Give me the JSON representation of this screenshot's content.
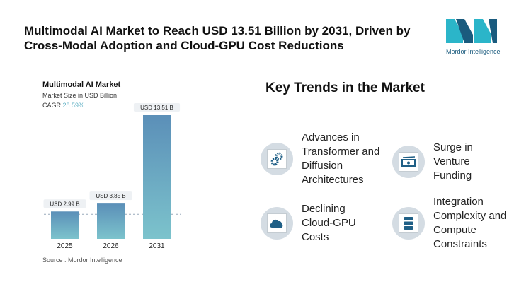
{
  "title": "Multimodal AI Market to Reach USD 13.51 Billion by 2031, Driven by Cross-Modal Adoption and Cloud-GPU Cost Reductions",
  "logo": {
    "text": "Mordor Intelligence"
  },
  "chart_data": {
    "type": "bar",
    "title": "Multimodal AI Market",
    "subtitle": "Market Size in USD Billion",
    "cagr_label": "CAGR",
    "cagr_value": "28.59%",
    "categories": [
      "2025",
      "2026",
      "2031"
    ],
    "values": [
      2.99,
      3.85,
      13.51
    ],
    "data_labels": [
      "USD 2.99 B",
      "USD 3.85 B",
      "USD 13.51 B"
    ],
    "ylim": [
      0,
      13.51
    ],
    "colors": {
      "top": "#5b8fb8",
      "bottom": "#7cc3cc"
    },
    "source": "Source :  Mordor Intelligence"
  },
  "trends": {
    "heading": "Key Trends in the Market",
    "items": [
      {
        "label": "Advances in Transformer and Diffusion Architectures",
        "icon": "gears-icon"
      },
      {
        "label": "Surge in Venture Funding",
        "icon": "money-icon"
      },
      {
        "label": "Declining Cloud-GPU Costs",
        "icon": "cloud-icon"
      },
      {
        "label": "Integration Complexity and Compute Constraints",
        "icon": "database-icon"
      }
    ]
  }
}
